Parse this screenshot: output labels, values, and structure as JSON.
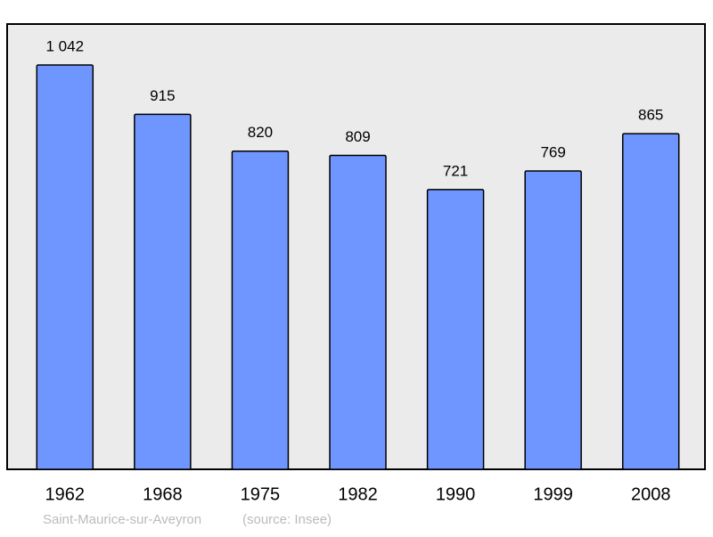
{
  "chart_data": {
    "type": "bar",
    "categories": [
      "1962",
      "1968",
      "1975",
      "1982",
      "1990",
      "1999",
      "2008"
    ],
    "values": [
      1042,
      915,
      820,
      809,
      721,
      769,
      865
    ],
    "value_labels": [
      "1 042",
      "915",
      "820",
      "809",
      "721",
      "769",
      "865"
    ],
    "color": "#6f96ff",
    "caption": "Saint-Maurice-sur-Aveyron",
    "source": "(source: Insee)"
  }
}
